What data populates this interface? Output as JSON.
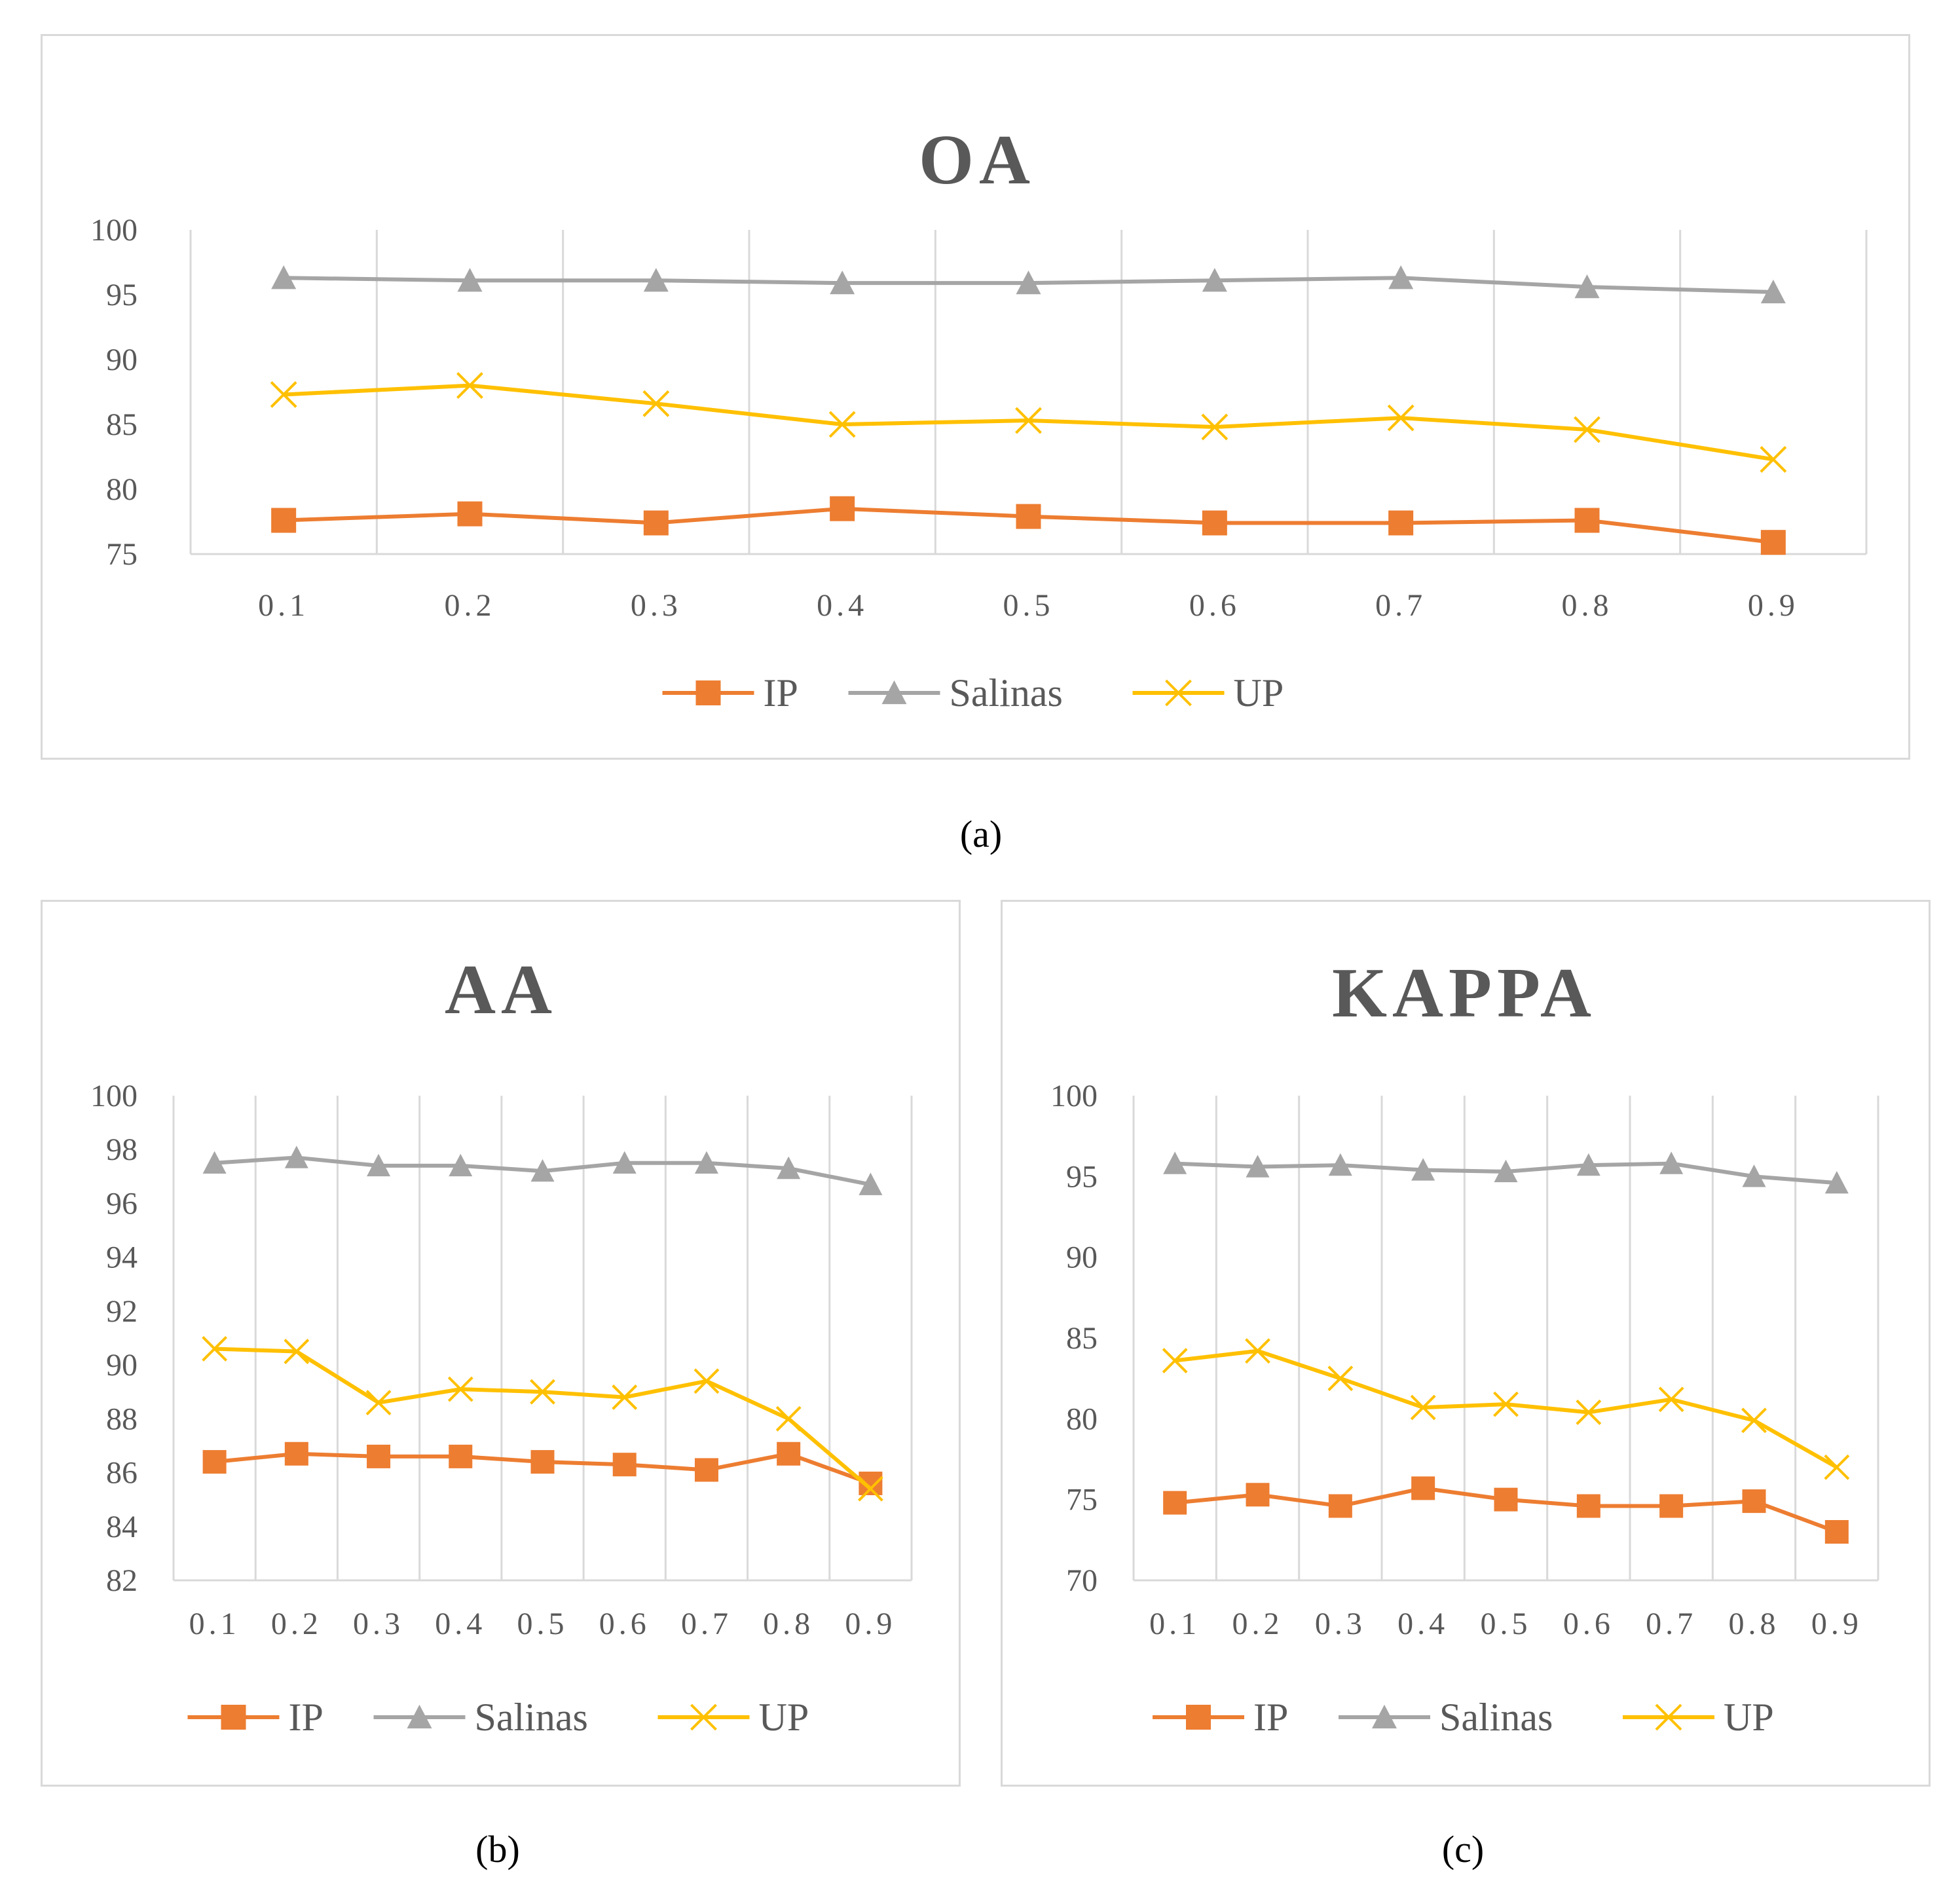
{
  "chart_data": [
    {
      "id": "oa",
      "type": "line",
      "title": "OA",
      "caption": "(a)",
      "categories": [
        "0.1",
        "0.2",
        "0.3",
        "0.4",
        "0.5",
        "0.6",
        "0.7",
        "0.8",
        "0.9"
      ],
      "ylim": [
        75,
        100
      ],
      "yticks": [
        "100",
        "95",
        "90",
        "85",
        "80",
        "75"
      ],
      "series": [
        {
          "name": "IP",
          "color": "#ed7d31",
          "marker": "square",
          "values": [
            77.6,
            78.1,
            77.4,
            78.5,
            77.9,
            77.4,
            77.4,
            77.6,
            75.9
          ]
        },
        {
          "name": "Salinas",
          "color": "#a5a5a5",
          "marker": "triangle",
          "values": [
            96.3,
            96.1,
            96.1,
            95.9,
            95.9,
            96.1,
            96.3,
            95.6,
            95.2
          ]
        },
        {
          "name": "UP",
          "color": "#ffc000",
          "marker": "x",
          "values": [
            87.3,
            88.0,
            86.6,
            85.0,
            85.3,
            84.8,
            85.5,
            84.6,
            82.3
          ]
        }
      ]
    },
    {
      "id": "aa",
      "type": "line",
      "title": "AA",
      "caption": "(b)",
      "categories": [
        "0.1",
        "0.2",
        "0.3",
        "0.4",
        "0.5",
        "0.6",
        "0.7",
        "0.8",
        "0.9"
      ],
      "ylim": [
        82,
        100
      ],
      "yticks": [
        "100",
        "98",
        "96",
        "94",
        "92",
        "90",
        "88",
        "86",
        "84",
        "82"
      ],
      "series": [
        {
          "name": "IP",
          "color": "#ed7d31",
          "marker": "square",
          "values": [
            86.4,
            86.7,
            86.6,
            86.6,
            86.4,
            86.3,
            86.1,
            86.7,
            85.6
          ]
        },
        {
          "name": "Salinas",
          "color": "#a5a5a5",
          "marker": "triangle",
          "values": [
            97.5,
            97.7,
            97.4,
            97.4,
            97.2,
            97.5,
            97.5,
            97.3,
            96.7
          ]
        },
        {
          "name": "UP",
          "color": "#ffc000",
          "marker": "x",
          "values": [
            90.6,
            90.5,
            88.6,
            89.1,
            89.0,
            88.8,
            89.4,
            88.0,
            85.4
          ]
        }
      ]
    },
    {
      "id": "kappa",
      "type": "line",
      "title": "KAPPA",
      "caption": "(c)",
      "categories": [
        "0.1",
        "0.2",
        "0.3",
        "0.4",
        "0.5",
        "0.6",
        "0.7",
        "0.8",
        "0.9"
      ],
      "ylim": [
        70,
        100
      ],
      "yticks": [
        "100",
        "95",
        "90",
        "85",
        "80",
        "75",
        "70"
      ],
      "series": [
        {
          "name": "IP",
          "color": "#ed7d31",
          "marker": "square",
          "values": [
            74.8,
            75.3,
            74.6,
            75.7,
            75.0,
            74.6,
            74.6,
            74.9,
            73.0
          ]
        },
        {
          "name": "Salinas",
          "color": "#a5a5a5",
          "marker": "triangle",
          "values": [
            95.8,
            95.6,
            95.7,
            95.4,
            95.3,
            95.7,
            95.8,
            95.0,
            94.6
          ]
        },
        {
          "name": "UP",
          "color": "#ffc000",
          "marker": "x",
          "values": [
            83.6,
            84.2,
            82.5,
            80.7,
            80.9,
            80.4,
            81.2,
            79.9,
            77.0
          ]
        }
      ]
    }
  ]
}
